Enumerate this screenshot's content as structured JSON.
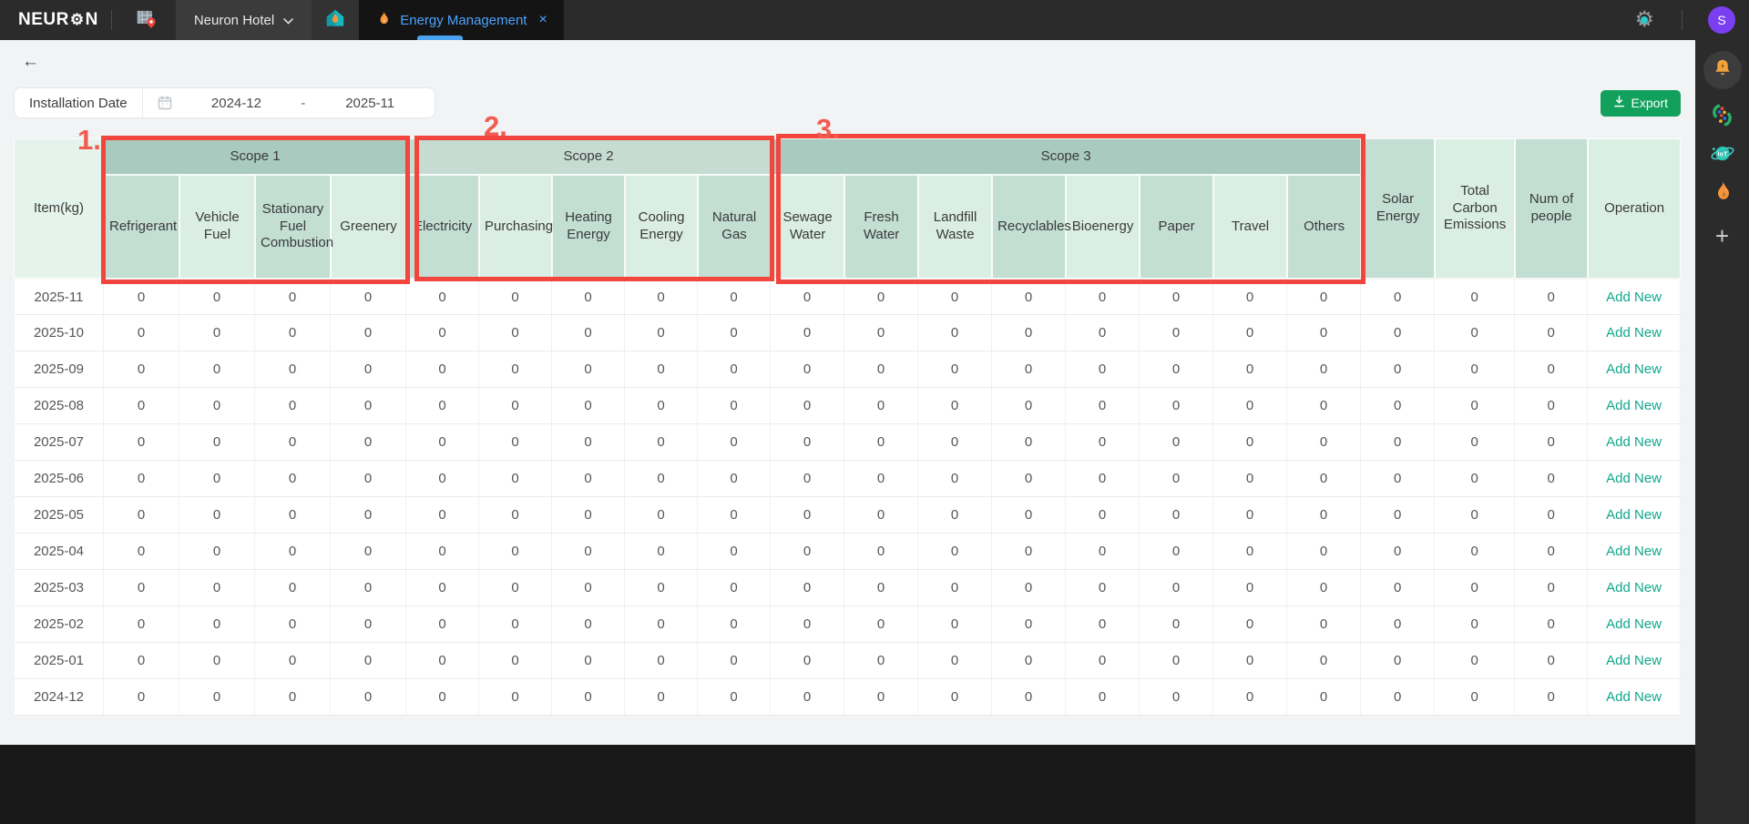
{
  "topbar": {
    "logo_prefix": "NEUR",
    "logo_gear": "⚙",
    "logo_suffix": "N",
    "workspace_label": "Neuron Hotel",
    "tab": {
      "label": "Energy Management",
      "close_glyph": "×"
    },
    "avatar_initial": "S"
  },
  "toolbar": {
    "back_glyph": "←",
    "filter_label": "Installation Date",
    "date_from": "2024-12",
    "date_separator": "-",
    "date_to": "2025-11",
    "export_label": "Export"
  },
  "table": {
    "item_header": "Item(kg)",
    "scope_groups": [
      {
        "label": "Scope 1",
        "columns": [
          "Refrigerant",
          "Vehicle Fuel",
          "Stationary Fuel Combustion",
          "Greenery"
        ]
      },
      {
        "label": "Scope 2",
        "columns": [
          "Electricity",
          "Purchasing",
          "Heating Energy",
          "Cooling Energy",
          "Natural Gas"
        ]
      },
      {
        "label": "Scope 3",
        "columns": [
          "Sewage Water",
          "Fresh Water",
          "Landfill Waste",
          "Recyclables",
          "Bioenergy",
          "Paper",
          "Travel",
          "Others"
        ]
      }
    ],
    "summary_columns": [
      "Solar Energy",
      "Total Carbon Emissions",
      "Num of people",
      "Operation"
    ],
    "action_label": "Add New",
    "rows": [
      {
        "item": "2025-11",
        "values": [
          0,
          0,
          0,
          0,
          0,
          0,
          0,
          0,
          0,
          0,
          0,
          0,
          0,
          0,
          0,
          0,
          0,
          0,
          0,
          0
        ]
      },
      {
        "item": "2025-10",
        "values": [
          0,
          0,
          0,
          0,
          0,
          0,
          0,
          0,
          0,
          0,
          0,
          0,
          0,
          0,
          0,
          0,
          0,
          0,
          0,
          0
        ]
      },
      {
        "item": "2025-09",
        "values": [
          0,
          0,
          0,
          0,
          0,
          0,
          0,
          0,
          0,
          0,
          0,
          0,
          0,
          0,
          0,
          0,
          0,
          0,
          0,
          0
        ]
      },
      {
        "item": "2025-08",
        "values": [
          0,
          0,
          0,
          0,
          0,
          0,
          0,
          0,
          0,
          0,
          0,
          0,
          0,
          0,
          0,
          0,
          0,
          0,
          0,
          0
        ]
      },
      {
        "item": "2025-07",
        "values": [
          0,
          0,
          0,
          0,
          0,
          0,
          0,
          0,
          0,
          0,
          0,
          0,
          0,
          0,
          0,
          0,
          0,
          0,
          0,
          0
        ]
      },
      {
        "item": "2025-06",
        "values": [
          0,
          0,
          0,
          0,
          0,
          0,
          0,
          0,
          0,
          0,
          0,
          0,
          0,
          0,
          0,
          0,
          0,
          0,
          0,
          0
        ]
      },
      {
        "item": "2025-05",
        "values": [
          0,
          0,
          0,
          0,
          0,
          0,
          0,
          0,
          0,
          0,
          0,
          0,
          0,
          0,
          0,
          0,
          0,
          0,
          0,
          0
        ]
      },
      {
        "item": "2025-04",
        "values": [
          0,
          0,
          0,
          0,
          0,
          0,
          0,
          0,
          0,
          0,
          0,
          0,
          0,
          0,
          0,
          0,
          0,
          0,
          0,
          0
        ]
      },
      {
        "item": "2025-03",
        "values": [
          0,
          0,
          0,
          0,
          0,
          0,
          0,
          0,
          0,
          0,
          0,
          0,
          0,
          0,
          0,
          0,
          0,
          0,
          0,
          0
        ]
      },
      {
        "item": "2025-02",
        "values": [
          0,
          0,
          0,
          0,
          0,
          0,
          0,
          0,
          0,
          0,
          0,
          0,
          0,
          0,
          0,
          0,
          0,
          0,
          0,
          0
        ]
      },
      {
        "item": "2025-01",
        "values": [
          0,
          0,
          0,
          0,
          0,
          0,
          0,
          0,
          0,
          0,
          0,
          0,
          0,
          0,
          0,
          0,
          0,
          0,
          0,
          0
        ]
      },
      {
        "item": "2024-12",
        "values": [
          0,
          0,
          0,
          0,
          0,
          0,
          0,
          0,
          0,
          0,
          0,
          0,
          0,
          0,
          0,
          0,
          0,
          0,
          0,
          0
        ]
      }
    ]
  },
  "annotations": [
    {
      "label": "1."
    },
    {
      "label": "2."
    },
    {
      "label": "3."
    }
  ],
  "colors": {
    "accent_green": "#12a15d",
    "link_teal": "#10a78d",
    "tab_blue": "#4da3ff",
    "annotation_red": "#f2453d",
    "group_header_dark": "#a9cabf",
    "group_header_light": "#c6dcd2",
    "subcol_dark": "#c3ded3",
    "subcol_light": "#daeee4",
    "item_col_bg": "#e4f4ec"
  }
}
